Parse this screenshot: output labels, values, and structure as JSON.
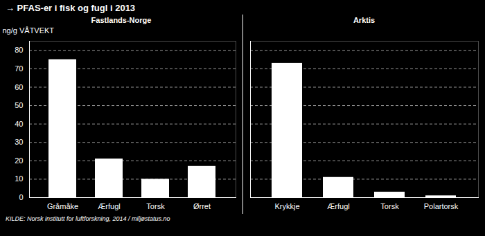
{
  "chart_data": [
    {
      "type": "bar",
      "title": "→ PFAS-er i fisk og fugl i 2013",
      "subtitle": "Fastlands-Norge",
      "ylabel": "ng/g VÅTVEKT",
      "categories": [
        "Gråmåke",
        "Ærfugl",
        "Torsk",
        "Ørret"
      ],
      "values": [
        75,
        21,
        10,
        17
      ],
      "color": "#ffffff",
      "ylim": [
        0,
        85
      ],
      "yticks": [
        0,
        10,
        20,
        30,
        40,
        50,
        60,
        70,
        80
      ],
      "grid": true,
      "source": "KILDE: Norsk institutt for luftforskning, 2014 / miljøstatus.no"
    },
    {
      "type": "bar",
      "subtitle": "Arktis",
      "categories": [
        "Krykkje",
        "Ærfugl",
        "Torsk",
        "Polartorsk"
      ],
      "values": [
        73,
        11,
        3,
        1
      ],
      "color": "#ffffff",
      "ylim": [
        0,
        85
      ],
      "yticks": [
        0,
        10,
        20,
        30,
        40,
        50,
        60,
        70,
        80
      ],
      "grid": true,
      "tick_labels": "x"
    }
  ]
}
